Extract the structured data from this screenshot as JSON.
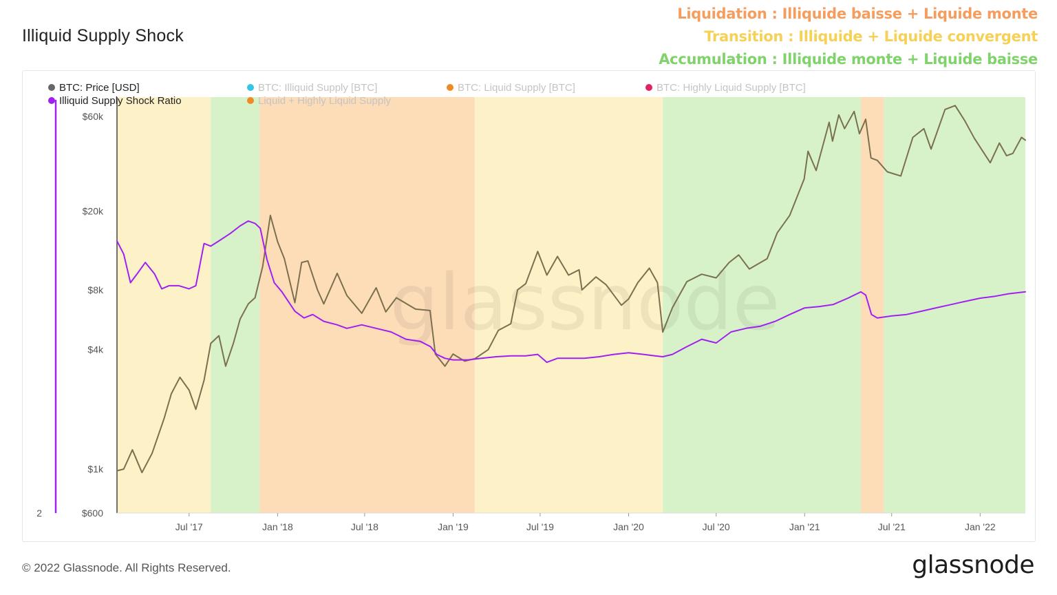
{
  "title": "Illiquid Supply Shock",
  "phase_notes": [
    {
      "text": "Liquidation : Illiquide baisse + Liquide monte",
      "color": "#f59d5e"
    },
    {
      "text": "Transition : Illiquide + Liquide convergent",
      "color": "#f5d158"
    },
    {
      "text": "Accumulation : Illiquide monte + Liquide baisse",
      "color": "#7fd36a"
    }
  ],
  "footer": {
    "copyright": "© 2022 Glassnode. All Rights Reserved.",
    "logo": "glassnode"
  },
  "watermark": "glassnode",
  "chart_data": {
    "type": "line",
    "x_axis": {
      "range": [
        "2017-02-01",
        "2022-04-05"
      ],
      "ticks": [
        {
          "date": "2017-07-01",
          "label": "Jul '17"
        },
        {
          "date": "2018-01-01",
          "label": "Jan '18"
        },
        {
          "date": "2018-07-01",
          "label": "Jul '18"
        },
        {
          "date": "2019-01-01",
          "label": "Jan '19"
        },
        {
          "date": "2019-07-01",
          "label": "Jul '19"
        },
        {
          "date": "2020-01-01",
          "label": "Jan '20"
        },
        {
          "date": "2020-07-01",
          "label": "Jul '20"
        },
        {
          "date": "2021-01-01",
          "label": "Jan '21"
        },
        {
          "date": "2021-07-01",
          "label": "Jul '21"
        },
        {
          "date": "2022-01-01",
          "label": "Jan '22"
        }
      ]
    },
    "y_axis_left": {
      "scale": "log",
      "range": [
        600,
        75000
      ],
      "ticks": [
        {
          "value": 600,
          "label": "$600"
        },
        {
          "value": 1000,
          "label": "$1k"
        },
        {
          "value": 4000,
          "label": "$4k"
        },
        {
          "value": 8000,
          "label": "$8k"
        },
        {
          "value": 20000,
          "label": "$20k"
        },
        {
          "value": 60000,
          "label": "$60k"
        }
      ]
    },
    "y_axis_right": {
      "scale": "log",
      "range": [
        2,
        9
      ],
      "ticks": [
        {
          "value": 2,
          "label": "2"
        }
      ],
      "color": "#a020f0"
    },
    "legend": {
      "placement": "top-left",
      "items": [
        {
          "label": "BTC: Price [USD]",
          "color": "#666666",
          "active": true
        },
        {
          "label": "BTC: Illiquid Supply [BTC]",
          "color": "#36c5e0",
          "active": false
        },
        {
          "label": "BTC: Liquid Supply [BTC]",
          "color": "#f08a24",
          "active": false
        },
        {
          "label": "BTC: Highly Liquid Supply [BTC]",
          "color": "#e0245e",
          "active": false
        },
        {
          "label": "Illiquid Supply Shock Ratio",
          "color": "#a020f0",
          "active": true
        },
        {
          "label": "Liquid + Highly Liquid Supply",
          "color": "#f08a24",
          "active": false
        }
      ]
    },
    "phases": [
      {
        "start": "2017-02-01",
        "end": "2017-08-15",
        "phase": "Transition",
        "color": "#fdf1c7"
      },
      {
        "start": "2017-08-15",
        "end": "2017-11-25",
        "phase": "Accumulation",
        "color": "#d7f2c9"
      },
      {
        "start": "2017-11-25",
        "end": "2019-02-15",
        "phase": "Liquidation",
        "color": "#fddcb8"
      },
      {
        "start": "2019-02-15",
        "end": "2020-03-12",
        "phase": "Transition",
        "color": "#fdf1c7"
      },
      {
        "start": "2020-03-12",
        "end": "2021-04-28",
        "phase": "Accumulation",
        "color": "#d7f2c9"
      },
      {
        "start": "2021-04-28",
        "end": "2021-06-15",
        "phase": "Liquidation",
        "color": "#fddcb8"
      },
      {
        "start": "2021-06-15",
        "end": "2022-04-05",
        "phase": "Accumulation",
        "color": "#d7f2c9"
      }
    ],
    "series": [
      {
        "name": "BTC: Price [USD]",
        "axis": "left",
        "color": "#7a6f4e",
        "points": [
          [
            "2017-02-01",
            980
          ],
          [
            "2017-02-15",
            1000
          ],
          [
            "2017-03-05",
            1250
          ],
          [
            "2017-03-25",
            960
          ],
          [
            "2017-04-15",
            1200
          ],
          [
            "2017-05-10",
            1800
          ],
          [
            "2017-05-25",
            2400
          ],
          [
            "2017-06-12",
            2900
          ],
          [
            "2017-07-01",
            2500
          ],
          [
            "2017-07-15",
            2000
          ],
          [
            "2017-08-01",
            2800
          ],
          [
            "2017-08-15",
            4300
          ],
          [
            "2017-09-01",
            4700
          ],
          [
            "2017-09-15",
            3300
          ],
          [
            "2017-10-01",
            4300
          ],
          [
            "2017-10-15",
            5700
          ],
          [
            "2017-11-01",
            6800
          ],
          [
            "2017-11-15",
            7300
          ],
          [
            "2017-12-01",
            10500
          ],
          [
            "2017-12-17",
            19000
          ],
          [
            "2018-01-01",
            14000
          ],
          [
            "2018-01-15",
            11500
          ],
          [
            "2018-02-06",
            6900
          ],
          [
            "2018-02-20",
            11000
          ],
          [
            "2018-03-05",
            11200
          ],
          [
            "2018-03-25",
            8000
          ],
          [
            "2018-04-07",
            6800
          ],
          [
            "2018-05-05",
            9700
          ],
          [
            "2018-05-25",
            7500
          ],
          [
            "2018-06-25",
            6100
          ],
          [
            "2018-07-25",
            8200
          ],
          [
            "2018-08-14",
            6200
          ],
          [
            "2018-09-05",
            7300
          ],
          [
            "2018-10-15",
            6400
          ],
          [
            "2018-11-14",
            6300
          ],
          [
            "2018-11-25",
            3800
          ],
          [
            "2018-12-15",
            3300
          ],
          [
            "2019-01-01",
            3800
          ],
          [
            "2019-01-25",
            3500
          ],
          [
            "2019-02-15",
            3600
          ],
          [
            "2019-03-15",
            4000
          ],
          [
            "2019-04-05",
            5000
          ],
          [
            "2019-05-01",
            5400
          ],
          [
            "2019-05-15",
            8000
          ],
          [
            "2019-06-01",
            8600
          ],
          [
            "2019-06-26",
            12500
          ],
          [
            "2019-07-15",
            9500
          ],
          [
            "2019-08-06",
            11800
          ],
          [
            "2019-08-29",
            9500
          ],
          [
            "2019-09-20",
            10100
          ],
          [
            "2019-09-26",
            8000
          ],
          [
            "2019-10-25",
            9300
          ],
          [
            "2019-11-15",
            8500
          ],
          [
            "2019-12-17",
            6700
          ],
          [
            "2020-01-01",
            7200
          ],
          [
            "2020-01-20",
            8700
          ],
          [
            "2020-02-13",
            10300
          ],
          [
            "2020-03-01",
            8700
          ],
          [
            "2020-03-12",
            4900
          ],
          [
            "2020-04-01",
            6500
          ],
          [
            "2020-05-01",
            8800
          ],
          [
            "2020-06-01",
            9600
          ],
          [
            "2020-07-01",
            9200
          ],
          [
            "2020-07-28",
            11000
          ],
          [
            "2020-08-17",
            12000
          ],
          [
            "2020-09-08",
            10200
          ],
          [
            "2020-10-15",
            11500
          ],
          [
            "2020-11-05",
            15500
          ],
          [
            "2020-12-01",
            19000
          ],
          [
            "2020-12-31",
            29000
          ],
          [
            "2021-01-08",
            40000
          ],
          [
            "2021-01-25",
            32000
          ],
          [
            "2021-02-21",
            56000
          ],
          [
            "2021-02-28",
            45000
          ],
          [
            "2021-03-13",
            61000
          ],
          [
            "2021-03-25",
            52000
          ],
          [
            "2021-04-14",
            63500
          ],
          [
            "2021-04-25",
            49000
          ],
          [
            "2021-05-08",
            58000
          ],
          [
            "2021-05-19",
            37000
          ],
          [
            "2021-06-01",
            36000
          ],
          [
            "2021-06-22",
            31500
          ],
          [
            "2021-07-20",
            30000
          ],
          [
            "2021-08-14",
            47000
          ],
          [
            "2021-09-06",
            52000
          ],
          [
            "2021-09-21",
            41000
          ],
          [
            "2021-10-20",
            65000
          ],
          [
            "2021-11-10",
            68000
          ],
          [
            "2021-11-30",
            57000
          ],
          [
            "2021-12-20",
            46500
          ],
          [
            "2022-01-22",
            35000
          ],
          [
            "2022-02-10",
            44000
          ],
          [
            "2022-02-25",
            38000
          ],
          [
            "2022-03-10",
            39000
          ],
          [
            "2022-03-28",
            47000
          ],
          [
            "2022-04-05",
            45500
          ]
        ]
      },
      {
        "name": "Illiquid Supply Shock Ratio",
        "axis": "right",
        "color": "#a020f0",
        "points": [
          [
            "2017-02-01",
            5.35
          ],
          [
            "2017-02-15",
            5.1
          ],
          [
            "2017-03-01",
            4.6
          ],
          [
            "2017-03-15",
            4.75
          ],
          [
            "2017-04-01",
            4.95
          ],
          [
            "2017-04-20",
            4.75
          ],
          [
            "2017-05-05",
            4.5
          ],
          [
            "2017-05-20",
            4.55
          ],
          [
            "2017-06-10",
            4.55
          ],
          [
            "2017-07-01",
            4.5
          ],
          [
            "2017-07-15",
            4.55
          ],
          [
            "2017-08-01",
            5.3
          ],
          [
            "2017-08-15",
            5.25
          ],
          [
            "2017-09-01",
            5.35
          ],
          [
            "2017-09-25",
            5.5
          ],
          [
            "2017-10-15",
            5.65
          ],
          [
            "2017-11-01",
            5.75
          ],
          [
            "2017-11-15",
            5.7
          ],
          [
            "2017-11-26",
            5.6
          ],
          [
            "2017-12-10",
            5.0
          ],
          [
            "2017-12-25",
            4.6
          ],
          [
            "2018-01-10",
            4.45
          ],
          [
            "2018-02-06",
            4.15
          ],
          [
            "2018-02-25",
            4.05
          ],
          [
            "2018-03-15",
            4.1
          ],
          [
            "2018-04-07",
            4.0
          ],
          [
            "2018-05-05",
            3.95
          ],
          [
            "2018-05-25",
            3.9
          ],
          [
            "2018-06-25",
            3.95
          ],
          [
            "2018-07-25",
            3.9
          ],
          [
            "2018-08-25",
            3.85
          ],
          [
            "2018-09-25",
            3.75
          ],
          [
            "2018-10-25",
            3.72
          ],
          [
            "2018-11-15",
            3.65
          ],
          [
            "2018-11-28",
            3.55
          ],
          [
            "2018-12-15",
            3.5
          ],
          [
            "2019-01-01",
            3.48
          ],
          [
            "2019-02-01",
            3.48
          ],
          [
            "2019-03-01",
            3.5
          ],
          [
            "2019-04-01",
            3.52
          ],
          [
            "2019-05-01",
            3.53
          ],
          [
            "2019-06-01",
            3.53
          ],
          [
            "2019-06-26",
            3.55
          ],
          [
            "2019-07-15",
            3.45
          ],
          [
            "2019-08-06",
            3.5
          ],
          [
            "2019-09-01",
            3.5
          ],
          [
            "2019-10-01",
            3.5
          ],
          [
            "2019-11-01",
            3.52
          ],
          [
            "2019-12-01",
            3.55
          ],
          [
            "2020-01-01",
            3.57
          ],
          [
            "2020-02-01",
            3.55
          ],
          [
            "2020-02-25",
            3.53
          ],
          [
            "2020-03-12",
            3.52
          ],
          [
            "2020-04-01",
            3.55
          ],
          [
            "2020-05-01",
            3.65
          ],
          [
            "2020-06-01",
            3.75
          ],
          [
            "2020-07-01",
            3.7
          ],
          [
            "2020-08-01",
            3.85
          ],
          [
            "2020-09-01",
            3.9
          ],
          [
            "2020-10-01",
            3.93
          ],
          [
            "2020-11-01",
            4.0
          ],
          [
            "2020-12-01",
            4.1
          ],
          [
            "2021-01-01",
            4.2
          ],
          [
            "2021-02-01",
            4.22
          ],
          [
            "2021-03-01",
            4.25
          ],
          [
            "2021-04-01",
            4.35
          ],
          [
            "2021-04-28",
            4.45
          ],
          [
            "2021-05-08",
            4.4
          ],
          [
            "2021-05-20",
            4.1
          ],
          [
            "2021-06-01",
            4.05
          ],
          [
            "2021-07-01",
            4.08
          ],
          [
            "2021-08-01",
            4.1
          ],
          [
            "2021-09-01",
            4.15
          ],
          [
            "2021-10-01",
            4.2
          ],
          [
            "2021-11-01",
            4.25
          ],
          [
            "2021-12-01",
            4.3
          ],
          [
            "2022-01-01",
            4.35
          ],
          [
            "2022-02-01",
            4.38
          ],
          [
            "2022-03-01",
            4.42
          ],
          [
            "2022-04-05",
            4.45
          ]
        ]
      }
    ]
  }
}
